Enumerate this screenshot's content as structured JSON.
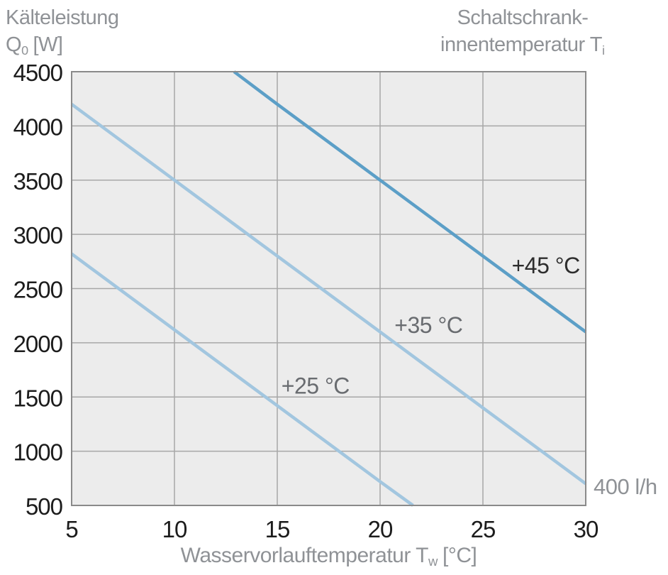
{
  "titles": {
    "left_line1": "Kälteleistung",
    "left_symbol": "Q",
    "left_sub": "0",
    "left_unit": "[W]",
    "right_line1": "Schaltschrank-",
    "right_line2": "innentemperatur T",
    "right_sub": "i",
    "x_label": "Wasservorlauftemperatur T",
    "x_sub": "w",
    "x_unit": "[°C]"
  },
  "colors": {
    "plot_bg": "#ececec",
    "grid": "#a7a7a7",
    "border": "#8a8a8a",
    "tick_text": "#1c1c1c",
    "title_text": "#8f9296",
    "label_gray": "#696c70",
    "label_dark": "#2d2d2d",
    "line_light": "#a2c6df",
    "line_dark": "#5c9fc7"
  },
  "chart_data": {
    "type": "line",
    "title": "",
    "x_label": "Wasservorlauftemperatur Tw [°C]",
    "y_label": "Kälteleistung Q0 [W]",
    "x_range": [
      5,
      30
    ],
    "y_range": [
      500,
      4500
    ],
    "x_ticks": [
      5,
      10,
      15,
      20,
      25,
      30
    ],
    "y_ticks": [
      4500,
      4000,
      3500,
      3000,
      2500,
      2000,
      1500,
      1000,
      500
    ],
    "grid": true,
    "legend_position": "inline-labels",
    "flow_annotation": "400 l/h",
    "series": [
      {
        "name": "+25 °C",
        "color": "#a2c6df",
        "points": [
          [
            5,
            2820
          ],
          [
            10,
            2120
          ],
          [
            15,
            1420
          ],
          [
            20,
            720
          ],
          [
            21.6,
            500
          ]
        ]
      },
      {
        "name": "+35 °C",
        "color": "#a2c6df",
        "points": [
          [
            5,
            4200
          ],
          [
            10,
            3500
          ],
          [
            15,
            2800
          ],
          [
            20,
            2100
          ],
          [
            25,
            1400
          ],
          [
            30,
            700
          ]
        ]
      },
      {
        "name": "+45 °C",
        "color": "#5c9fc7",
        "points": [
          [
            12.9,
            4500
          ],
          [
            15,
            4200
          ],
          [
            20,
            3500
          ],
          [
            25,
            2800
          ],
          [
            30,
            2100
          ]
        ]
      }
    ],
    "series_labels": [
      {
        "text": "+25 °C",
        "x": 15.2,
        "y": 1530,
        "color": "#696c70"
      },
      {
        "text": "+35 °C",
        "x": 20.7,
        "y": 2090,
        "color": "#696c70"
      },
      {
        "text": "+45 °C",
        "x": 26.4,
        "y": 2640,
        "color": "#2d2d2d"
      }
    ]
  }
}
